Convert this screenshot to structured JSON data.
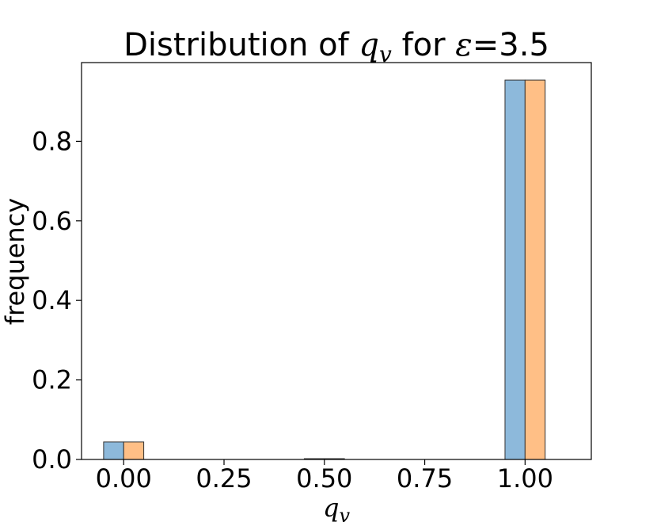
{
  "chart_data": {
    "type": "bar",
    "title_prefix": "Distribution of ",
    "title_var": "q",
    "title_sub": "v",
    "title_mid": " for ",
    "title_eps": "ε",
    "title_suffix": "=3.5",
    "xlabel_var": "q",
    "xlabel_sub": "v",
    "ylabel": "frequency",
    "x_ticks": [
      "0.00",
      "0.25",
      "0.50",
      "0.75",
      "1.00"
    ],
    "y_ticks": [
      "0.0",
      "0.2",
      "0.4",
      "0.6",
      "0.8"
    ],
    "xlim": [
      -0.105,
      1.165
    ],
    "ylim": [
      0,
      0.998
    ],
    "bar_width": 0.05,
    "categories": [
      0.0,
      0.5,
      1.0
    ],
    "series": [
      {
        "values": [
          0.044,
          0.002,
          0.954
        ],
        "color": "#8DB9DB"
      },
      {
        "values": [
          0.044,
          0.002,
          0.954
        ],
        "color": "#FFBF86"
      }
    ],
    "grid": false
  }
}
